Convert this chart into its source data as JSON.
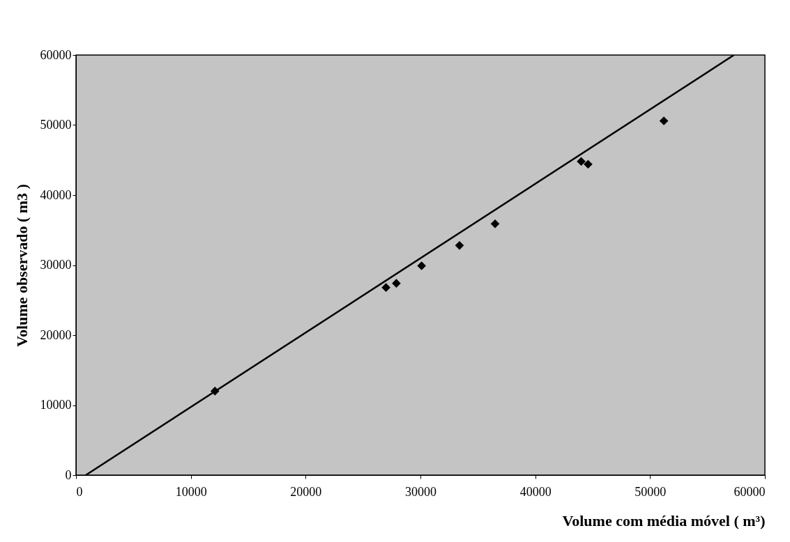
{
  "chart_data": {
    "type": "scatter",
    "xlabel": "Volume com média móvel ( m³)",
    "ylabel": "Volume observado ( m3 )",
    "xlim": [
      0,
      60000
    ],
    "ylim": [
      0,
      60000
    ],
    "xticks": [
      0,
      10000,
      20000,
      30000,
      40000,
      50000,
      60000
    ],
    "yticks": [
      0,
      10000,
      20000,
      30000,
      40000,
      50000,
      60000
    ],
    "grid": false,
    "marker": "diamond",
    "series": [
      {
        "color": "#000000",
        "x": [
          12100,
          27000,
          27900,
          30100,
          33400,
          36500,
          44000,
          44600,
          51200
        ],
        "values": [
          12000,
          26800,
          27400,
          29900,
          32800,
          35900,
          44800,
          44400,
          50600
        ]
      },
      {
        "type": "line",
        "marker": "none",
        "color": "#000000",
        "x": [
          850,
          57300
        ],
        "values": [
          0,
          60000
        ]
      }
    ]
  }
}
